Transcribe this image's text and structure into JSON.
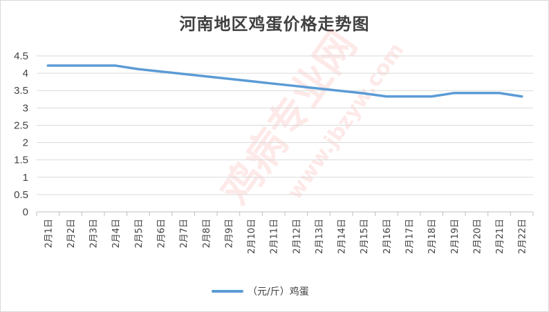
{
  "chart_data": {
    "type": "line",
    "title": "河南地区鸡蛋价格走势图",
    "xlabel": "",
    "ylabel": "",
    "categories": [
      "2月1日",
      "2月2日",
      "2月3日",
      "2月4日",
      "2月5日",
      "2月6日",
      "2月7日",
      "2月8日",
      "2月9日",
      "2月10日",
      "2月11日",
      "2月12日",
      "2月13日",
      "2月14日",
      "2月15日",
      "2月16日",
      "2月17日",
      "2月18日",
      "2月19日",
      "2月20日",
      "2月21日",
      "2月22日"
    ],
    "series": [
      {
        "name": "（元/斤）鸡蛋",
        "color": "#5b9bd5",
        "values": [
          4.22,
          4.22,
          4.22,
          4.22,
          4.12,
          4.05,
          3.98,
          3.91,
          3.84,
          3.77,
          3.7,
          3.63,
          3.56,
          3.49,
          3.42,
          3.33,
          3.33,
          3.33,
          3.43,
          3.43,
          3.43,
          3.33
        ]
      }
    ],
    "ylim": [
      0,
      4.5
    ],
    "yticks": [
      0,
      0.5,
      1,
      1.5,
      2,
      2.5,
      3,
      3.5,
      4,
      4.5
    ],
    "grid": true,
    "legend": "bottom"
  },
  "watermark": {
    "brand": "鸡病专业网",
    "site": "www.jbzyw.com"
  }
}
